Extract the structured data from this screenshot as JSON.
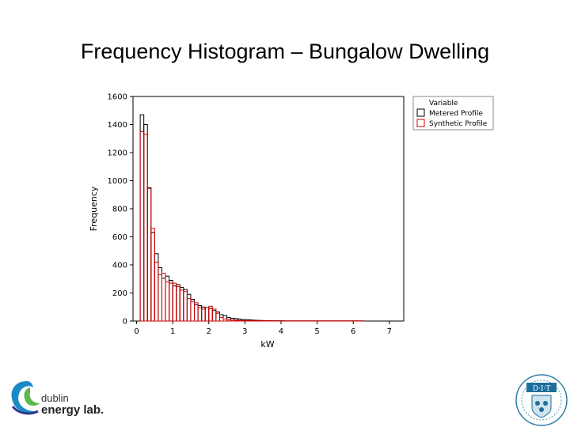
{
  "slide": {
    "title": "Frequency Histogram – Bungalow Dwelling"
  },
  "chart_data": {
    "type": "histogram",
    "title": "",
    "xlabel": "kW",
    "ylabel": "Frequency",
    "xlim": [
      -0.1,
      7.4
    ],
    "ylim": [
      0,
      1600
    ],
    "x_ticks": [
      0,
      1,
      2,
      3,
      4,
      5,
      6,
      7
    ],
    "y_ticks": [
      0,
      200,
      400,
      600,
      800,
      1000,
      1200,
      1400,
      1600
    ],
    "bin_width": 0.1,
    "bin_start": 0.1,
    "legend": {
      "title": "Variable",
      "position": "top-right, outside plot"
    },
    "series": [
      {
        "name": "Metered Profile",
        "color": "#000000",
        "values": [
          1470,
          1400,
          950,
          630,
          480,
          380,
          305,
          320,
          290,
          250,
          260,
          240,
          225,
          190,
          155,
          115,
          110,
          100,
          95,
          90,
          75,
          65,
          45,
          40,
          25,
          20,
          18,
          14,
          10,
          10,
          8,
          6,
          5,
          4,
          3,
          3,
          2,
          2,
          2,
          2,
          1,
          1,
          1,
          1,
          1,
          1,
          1,
          1,
          1,
          1,
          1,
          1,
          1,
          1,
          1,
          1,
          1,
          1,
          1,
          1,
          1,
          1
        ]
      },
      {
        "name": "Synthetic Profile",
        "color": "#cc0000",
        "values": [
          1350,
          1330,
          945,
          660,
          420,
          330,
          340,
          280,
          270,
          270,
          245,
          220,
          210,
          160,
          140,
          130,
          95,
          85,
          95,
          105,
          85,
          55,
          25,
          15,
          8,
          7,
          6,
          5,
          4,
          3,
          3,
          2,
          2,
          2,
          2,
          2,
          1,
          1,
          1,
          1,
          1,
          1,
          1,
          1,
          1,
          1,
          1,
          1,
          1,
          1,
          1,
          1,
          1,
          1,
          1,
          1,
          1,
          1,
          1,
          1,
          1,
          1
        ]
      }
    ]
  },
  "logos": {
    "left": {
      "line1": "dublin",
      "line2": "energy lab."
    },
    "right": {
      "text": "D·I·T"
    }
  }
}
